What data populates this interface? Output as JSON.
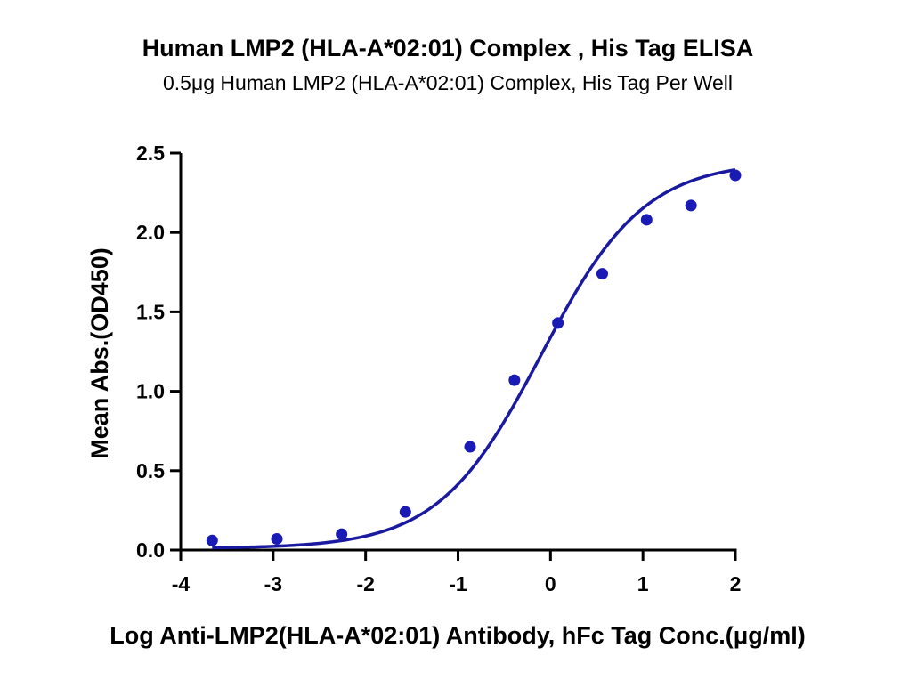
{
  "chart_data": {
    "type": "scatter",
    "title": "Human LMP2 (HLA-A*02:01) Complex , His Tag ELISA",
    "subtitle": "0.5μg Human LMP2 (HLA-A*02:01) Complex, His Tag Per Well",
    "xlabel": "Log Anti-LMP2(HLA-A*02:01) Antibody, hFc Tag Conc.(μg/ml)",
    "ylabel": "Mean Abs.(OD450)",
    "xlim": [
      -4,
      2
    ],
    "ylim": [
      0,
      2.5
    ],
    "x_ticks": [
      -4,
      -3,
      -2,
      -1,
      0,
      1,
      2
    ],
    "y_ticks": [
      0.0,
      0.5,
      1.0,
      1.5,
      2.0,
      2.5
    ],
    "x_tick_labels": [
      "-4",
      "-3",
      "-2",
      "-1",
      "0",
      "1",
      "2"
    ],
    "y_tick_labels": [
      "0.0",
      "0.5",
      "1.0",
      "1.5",
      "2.0",
      "2.5"
    ],
    "grid": false,
    "series": [
      {
        "x": [
          -3.66,
          -2.96,
          -2.26,
          -1.57,
          -0.87,
          -0.39,
          0.08,
          0.56,
          1.04,
          1.52,
          2.0
        ],
        "y": [
          0.06,
          0.07,
          0.1,
          0.24,
          0.65,
          1.07,
          1.43,
          1.74,
          2.08,
          2.17,
          2.36
        ]
      }
    ],
    "fit_curve": {
      "model": "4PL",
      "bottom": 0.01,
      "top": 2.45,
      "logEC50": -0.1,
      "hill": 0.78
    },
    "colors": {
      "points": "#1a1ab4",
      "curve": "#1a1aa0",
      "axes": "#000000"
    }
  }
}
